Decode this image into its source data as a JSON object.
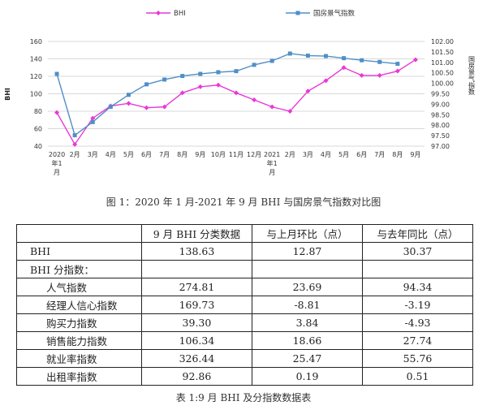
{
  "chart_data": {
    "type": "line",
    "legend_position": "top",
    "categories": [
      "2020年1月",
      "2月",
      "3月",
      "4月",
      "5月",
      "6月",
      "7月",
      "8月",
      "9月",
      "10月",
      "11月",
      "12月",
      "2021年1月",
      "2月",
      "3月",
      "4月",
      "5月",
      "6月",
      "7月",
      "8月",
      "9月"
    ],
    "y_left": {
      "min": 40,
      "max": 160,
      "ticks": [
        "40",
        "60",
        "80",
        "100",
        "120",
        "140",
        "160"
      ]
    },
    "y_left_label": "BHI",
    "y_right": {
      "min": 97.0,
      "max": 102.0,
      "ticks": [
        "97.00",
        "97.50",
        "98.00",
        "98.50",
        "99.00",
        "99.50",
        "100.00",
        "100.50",
        "101.00",
        "101.50",
        "102.00"
      ]
    },
    "y_right_label": "国房景气指数",
    "grid": "horizontal",
    "series": [
      {
        "name": "BHI",
        "axis": "left",
        "color": "#e83ad6",
        "marker": "diamond",
        "values": [
          78.5,
          42,
          72,
          86,
          89,
          84,
          85,
          101,
          108,
          110,
          101,
          93,
          85,
          80,
          103,
          115,
          130,
          121,
          121,
          126,
          139
        ]
      },
      {
        "name": "国房景气指数",
        "axis": "right",
        "color": "#4f8fc7",
        "marker": "square",
        "values": [
          100.45,
          97.52,
          98.15,
          98.88,
          99.45,
          99.95,
          100.18,
          100.35,
          100.45,
          100.53,
          100.58,
          100.88,
          101.07,
          101.42,
          101.32,
          101.3,
          101.2,
          101.1,
          101.02,
          100.93,
          null
        ]
      }
    ]
  },
  "figure_caption": "图 1：2020 年 1 月-2021 年 9 月 BHI 与国房景气指数对比图",
  "table": {
    "headers": [
      "",
      "9 月 BHI 分类数据",
      "与上月环比（点）",
      "与去年同比（点）"
    ],
    "rows": [
      {
        "label": "BHI",
        "values": [
          "138.63",
          "12.87",
          "30.37"
        ]
      },
      {
        "label": "BHI 分指数：",
        "values": [
          "",
          "",
          ""
        ],
        "group": true
      },
      {
        "label": "人气指数",
        "values": [
          "274.81",
          "23.69",
          "94.34"
        ]
      },
      {
        "label": "经理人信心指数",
        "values": [
          "169.73",
          "-8.81",
          "-3.19"
        ]
      },
      {
        "label": "购买力指数",
        "values": [
          "39.30",
          "3.84",
          "-4.93"
        ]
      },
      {
        "label": "销售能力指数",
        "values": [
          "106.34",
          "18.66",
          "27.74"
        ]
      },
      {
        "label": "就业率指数",
        "values": [
          "326.44",
          "25.47",
          "55.76"
        ]
      },
      {
        "label": "出租率指数",
        "values": [
          "92.86",
          "0.19",
          "0.51"
        ]
      }
    ]
  },
  "table_caption": "表 1:9 月 BHI 及分指数数据表"
}
